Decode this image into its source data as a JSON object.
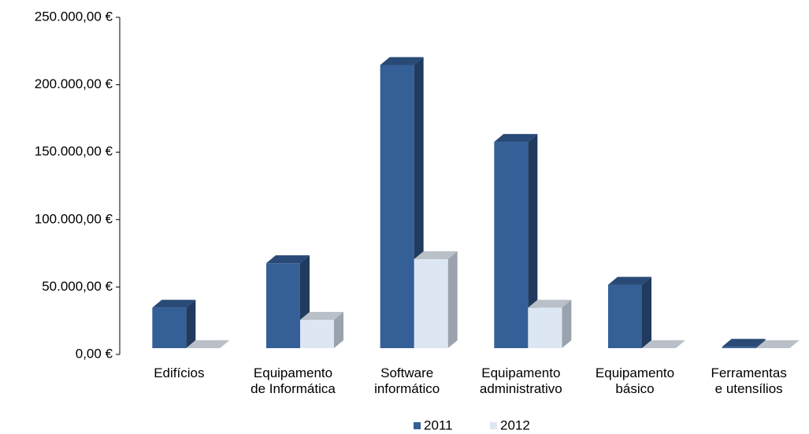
{
  "chart_data": {
    "type": "bar",
    "categories": [
      "Edifícios",
      "Equipamento\nde Informática",
      "Software\ninformático",
      "Equipamento\nadministrativo",
      "Equipamento\nbásico",
      "Ferramentas\ne utensílios"
    ],
    "series": [
      {
        "name": "2011",
        "color": "#355f97",
        "values": [
          30000,
          63000,
          210000,
          153000,
          47000,
          1000
        ]
      },
      {
        "name": "2012",
        "color": "#dde6f3",
        "values": [
          0,
          21000,
          66000,
          30000,
          0,
          0
        ]
      }
    ],
    "ylim": [
      0,
      250000
    ],
    "yticks": [
      {
        "value": 0,
        "label": "0,00 €"
      },
      {
        "value": 50000,
        "label": "50.000,00 €"
      },
      {
        "value": 100000,
        "label": "100.000,00 €"
      },
      {
        "value": 150000,
        "label": "150.000,00 €"
      },
      {
        "value": 200000,
        "label": "200.000,00 €"
      },
      {
        "value": 250000,
        "label": "250.000,00 €"
      }
    ],
    "legend": "bottom"
  }
}
